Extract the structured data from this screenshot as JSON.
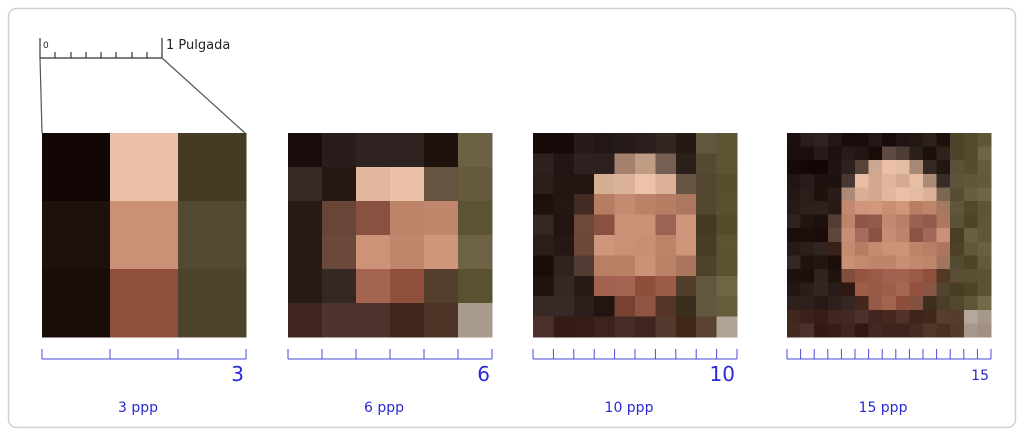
{
  "scale": {
    "start": "0",
    "end": "1 Pulgada"
  },
  "panels": [
    {
      "ppp": 3,
      "caption": "3 ppp"
    },
    {
      "ppp": 6,
      "caption": "6 ppp"
    },
    {
      "ppp": 10,
      "caption": "10 ppp"
    },
    {
      "ppp": 15,
      "caption": "15 ppp"
    }
  ]
}
